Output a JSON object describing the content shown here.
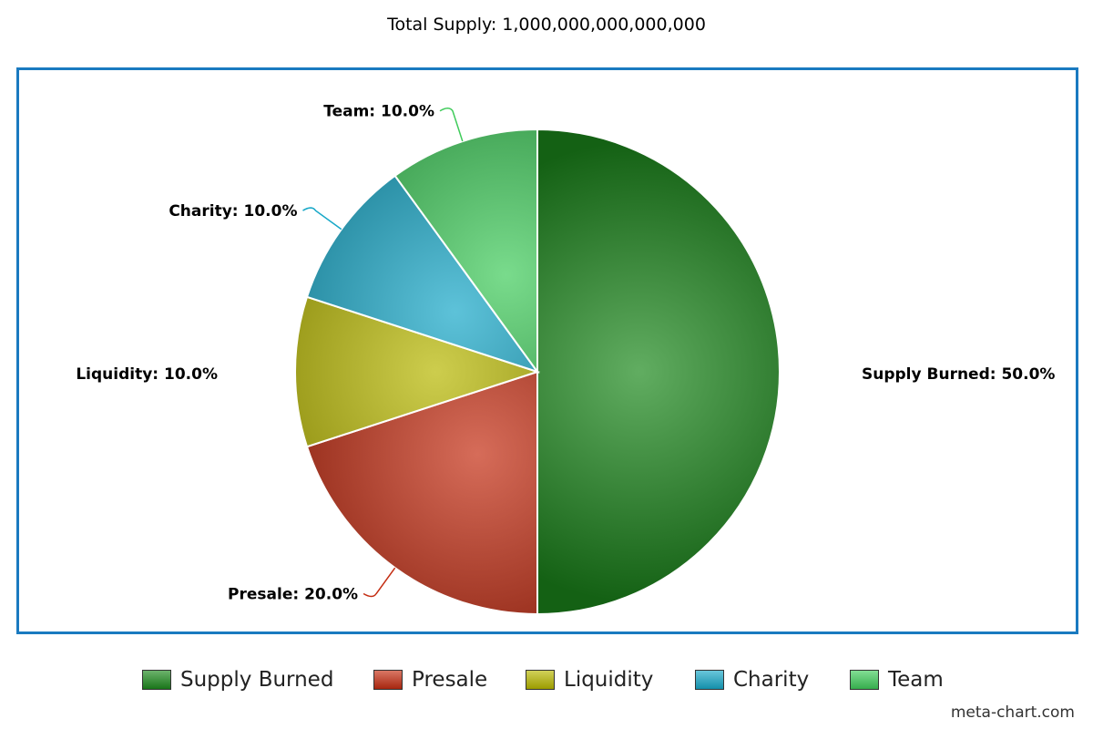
{
  "chart_data": {
    "type": "pie",
    "title": "Total Supply: 1,000,000,000,000,000",
    "categories": [
      "Supply Burned",
      "Presale",
      "Liquidity",
      "Charity",
      "Team"
    ],
    "values": [
      50.0,
      20.0,
      10.0,
      10.0,
      10.0
    ],
    "slice_labels": [
      "Supply Burned: 50.0%",
      "Presale: 20.0%",
      "Liquidity: 10.0%",
      "Charity: 10.0%",
      "Team: 10.0%"
    ],
    "colors": [
      "#1d8a1d",
      "#c42d12",
      "#b8b800",
      "#18a8c8",
      "#3fcb5a"
    ],
    "legend": {
      "placement": "bottom",
      "entries": [
        "Supply Burned",
        "Presale",
        "Liquidity",
        "Charity",
        "Team"
      ]
    },
    "credit": "meta-chart.com"
  }
}
